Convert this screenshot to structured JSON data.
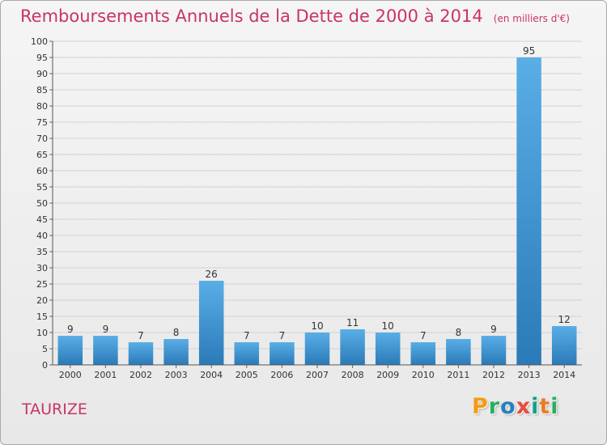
{
  "title": "Remboursements Annuels de la Dette de 2000 à 2014",
  "unit_note": "(en milliers d'€)",
  "town": "TAURIZE",
  "logo": {
    "letters": [
      "P",
      "r",
      "o",
      "x",
      "i",
      "t",
      "i"
    ],
    "colors": [
      "#f39c12",
      "#27ae60",
      "#2980b9",
      "#e74c3c",
      "#16a085",
      "#e67e22",
      "#27ae60"
    ]
  },
  "colors": {
    "accent": "#c8336a",
    "bar_light": "#5aaee6",
    "bar_dark": "#2a7ab8"
  },
  "chart_data": {
    "type": "bar",
    "categories": [
      "2000",
      "2001",
      "2002",
      "2003",
      "2004",
      "2005",
      "2006",
      "2007",
      "2008",
      "2009",
      "2010",
      "2011",
      "2012",
      "2013",
      "2014"
    ],
    "values": [
      9,
      9,
      7,
      8,
      26,
      7,
      7,
      10,
      11,
      10,
      7,
      8,
      9,
      95,
      12
    ],
    "ylim": [
      0,
      100
    ],
    "yticks": [
      0,
      5,
      10,
      15,
      20,
      25,
      30,
      35,
      40,
      45,
      50,
      55,
      60,
      65,
      70,
      75,
      80,
      85,
      90,
      95,
      100
    ],
    "grid": true
  }
}
